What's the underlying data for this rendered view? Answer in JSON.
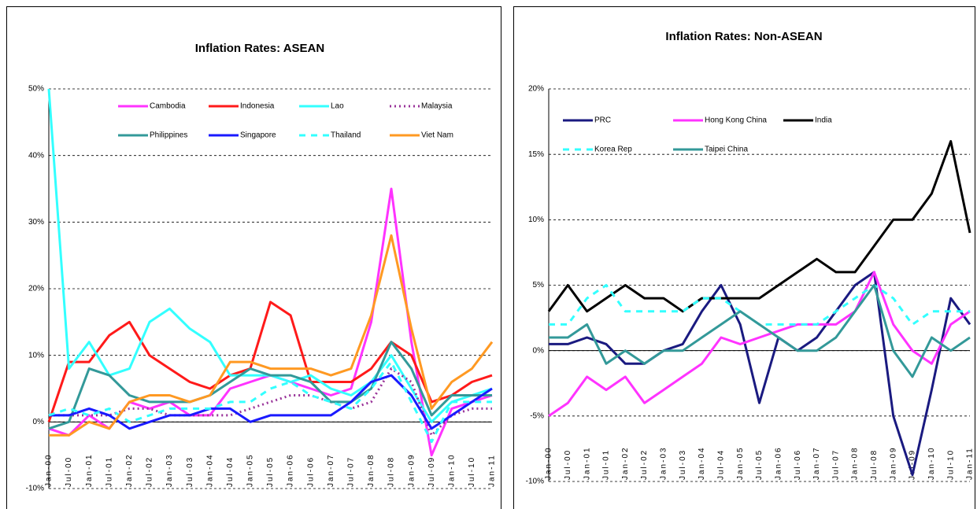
{
  "chart_data": [
    {
      "type": "line",
      "title": "Inflation Rates: ASEAN",
      "categories": [
        "Jan-00",
        "Jul-00",
        "Jan-01",
        "Jul-01",
        "Jan-02",
        "Jul-02",
        "Jan-03",
        "Jul-03",
        "Jan-04",
        "Jul-04",
        "Jan-05",
        "Jul-05",
        "Jan-06",
        "Jul-06",
        "Jan-07",
        "Jul-07",
        "Jan-08",
        "Jul-08",
        "Jan-09",
        "Jul-09",
        "Jan-10",
        "Jul-10",
        "Jan-11"
      ],
      "ylim": [
        -10,
        50
      ],
      "yticks": [
        {
          "value": -10,
          "label": "-10%"
        },
        {
          "value": 0,
          "label": "0%"
        },
        {
          "value": 10,
          "label": "10%"
        },
        {
          "value": 20,
          "label": "20%"
        },
        {
          "value": 30,
          "label": "30%"
        },
        {
          "value": 40,
          "label": "40%"
        },
        {
          "value": 50,
          "label": "50%"
        }
      ],
      "grid": true,
      "series": [
        {
          "name": "Cambodia",
          "color": "#ff33ff",
          "values": [
            -1,
            -2,
            1,
            -1,
            3,
            2,
            3,
            1,
            1,
            5,
            6,
            7,
            6,
            5,
            4,
            5,
            15,
            35,
            12,
            -5,
            2,
            3,
            4
          ]
        },
        {
          "name": "Indonesia",
          "color": "#ff1a1a",
          "values": [
            0,
            9,
            9,
            13,
            15,
            10,
            8,
            6,
            5,
            7,
            8,
            18,
            16,
            6,
            6,
            6,
            8,
            12,
            10,
            3,
            4,
            6,
            7
          ]
        },
        {
          "name": "Lao",
          "color": "#33ffff",
          "values": [
            50,
            8,
            12,
            7,
            8,
            15,
            17,
            14,
            12,
            7,
            7,
            7,
            6,
            7,
            5,
            4,
            6,
            10,
            5,
            0,
            3,
            4,
            5
          ]
        },
        {
          "name": "Malaysia",
          "color": "#993399",
          "line_style": "dotted",
          "values": [
            1,
            1,
            1,
            1,
            2,
            2,
            1,
            1,
            1,
            1,
            2,
            3,
            4,
            4,
            3,
            2,
            3,
            8,
            6,
            -2,
            1,
            2,
            2
          ]
        },
        {
          "name": "Philippines",
          "color": "#339999",
          "values": [
            -1,
            0,
            8,
            7,
            4,
            3,
            3,
            3,
            4,
            6,
            8,
            7,
            7,
            6,
            3,
            3,
            5,
            12,
            8,
            1,
            4,
            4,
            4
          ]
        },
        {
          "name": "Singapore",
          "color": "#1a1aff",
          "values": [
            1,
            1,
            2,
            1,
            -1,
            0,
            1,
            1,
            2,
            2,
            0,
            1,
            1,
            1,
            1,
            3,
            6,
            7,
            4,
            -1,
            1,
            3,
            5
          ]
        },
        {
          "name": "Thailand",
          "color": "#33ffff",
          "line_style": "dashed",
          "values": [
            1,
            2,
            1,
            2,
            0,
            1,
            2,
            2,
            2,
            3,
            3,
            5,
            6,
            4,
            3,
            2,
            5,
            9,
            3,
            -3,
            3,
            3,
            3
          ]
        },
        {
          "name": "Viet Nam",
          "color": "#ff9922",
          "values": [
            -2,
            -2,
            0,
            -1,
            3,
            4,
            4,
            3,
            4,
            9,
            9,
            8,
            8,
            8,
            7,
            8,
            16,
            28,
            14,
            2,
            6,
            8,
            12
          ]
        }
      ]
    },
    {
      "type": "line",
      "title": "Inflation Rates: Non-ASEAN",
      "categories": [
        "Jan-00",
        "Jul-00",
        "Jan-01",
        "Jul-01",
        "Jan-02",
        "Jul-02",
        "Jan-03",
        "Jul-03",
        "Jan-04",
        "Jul-04",
        "Jan-05",
        "Jul-05",
        "Jan-06",
        "Jul-06",
        "Jan-07",
        "Jul-07",
        "Jan-08",
        "Jul-08",
        "Jan-09",
        "Jul-09",
        "Jan-10",
        "Jul-10",
        "Jan-11"
      ],
      "ylim": [
        -10,
        20
      ],
      "yticks": [
        {
          "value": -10,
          "label": "-10%"
        },
        {
          "value": -5,
          "label": "-5%"
        },
        {
          "value": 0,
          "label": "0%"
        },
        {
          "value": 5,
          "label": "5%"
        },
        {
          "value": 10,
          "label": "10%"
        },
        {
          "value": 15,
          "label": "15%"
        },
        {
          "value": 20,
          "label": "20%"
        }
      ],
      "grid": true,
      "series": [
        {
          "name": "PRC",
          "color": "#1a1a80",
          "values": [
            0.5,
            0.5,
            1,
            0.5,
            -1,
            -1,
            0,
            0.5,
            3,
            5,
            2,
            -4,
            1,
            0,
            1,
            3,
            5,
            6,
            -5,
            -9.5,
            -3,
            4,
            2
          ]
        },
        {
          "name": "Hong Kong China",
          "color": "#ff33ff",
          "values": [
            -5,
            -4,
            -2,
            -3,
            -2,
            -4,
            -3,
            -2,
            -1,
            1,
            0.5,
            1,
            1.5,
            2,
            2,
            2,
            3,
            6,
            2,
            0,
            -1,
            2,
            3
          ]
        },
        {
          "name": "India",
          "color": "#000000",
          "values": [
            3,
            5,
            3,
            4,
            5,
            4,
            4,
            3,
            4,
            4,
            4,
            4,
            5,
            6,
            7,
            6,
            6,
            8,
            10,
            10,
            12,
            16,
            9
          ]
        },
        {
          "name": "Korea Rep",
          "color": "#33ffff",
          "line_style": "dashed",
          "values": [
            2,
            2,
            4,
            5,
            3,
            3,
            3,
            3,
            4,
            4,
            3,
            2,
            2,
            2,
            2,
            3,
            4,
            5,
            4,
            2,
            3,
            3,
            3
          ]
        },
        {
          "name": "Taipei China",
          "color": "#339999",
          "values": [
            1,
            1,
            2,
            -1,
            0,
            -1,
            0,
            0,
            1,
            2,
            3,
            2,
            1,
            0,
            0,
            1,
            3,
            5,
            0,
            -2,
            1,
            0,
            1
          ]
        }
      ]
    }
  ]
}
